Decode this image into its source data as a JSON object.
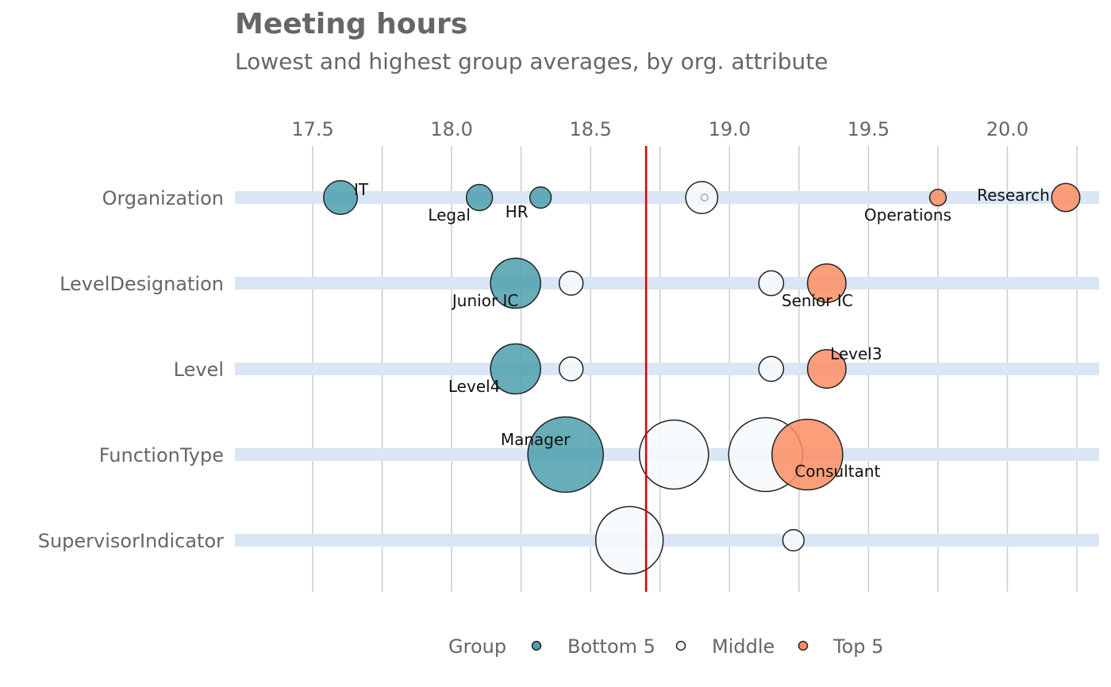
{
  "chart_data": {
    "type": "scatter",
    "title": "Meeting hours",
    "subtitle": "Lowest and highest group averages, by org. attribute",
    "xlim": [
      17.22,
      20.33
    ],
    "x_ticks": [
      "17.5",
      "18.0",
      "18.5",
      "19.0",
      "19.5",
      "20.0"
    ],
    "reference_line": 18.7,
    "reference_color": "#e00000",
    "categories": [
      "Organization",
      "LevelDesignation",
      "Level",
      "FunctionType",
      "SupervisorIndicator"
    ],
    "group_colors": {
      "Bottom 5": "#4e9fae",
      "Middle": "#f6f9fc",
      "Top 5": "#fc8d62"
    },
    "band_color": "#d9e6f5",
    "points": [
      {
        "category": "Organization",
        "x": 17.6,
        "size": 5,
        "group": "Bottom 5",
        "label": "IT"
      },
      {
        "category": "Organization",
        "x": 18.1,
        "size": 3,
        "group": "Bottom 5",
        "label": "Legal"
      },
      {
        "category": "Organization",
        "x": 18.32,
        "size": 2,
        "group": "Bottom 5",
        "label": "HR"
      },
      {
        "category": "Organization",
        "x": 18.9,
        "size": 4.5,
        "group": "Middle",
        "label": ""
      },
      {
        "category": "Organization",
        "x": 18.91,
        "size": 0.2,
        "group": "Middle",
        "label": ""
      },
      {
        "category": "Organization",
        "x": 19.75,
        "size": 1.2,
        "group": "Top 5",
        "label": "Operations"
      },
      {
        "category": "Organization",
        "x": 20.21,
        "size": 3.5,
        "group": "Top 5",
        "label": "Research"
      },
      {
        "category": "LevelDesignation",
        "x": 18.23,
        "size": 11,
        "group": "Bottom 5",
        "label": "Junior IC"
      },
      {
        "category": "LevelDesignation",
        "x": 18.43,
        "size": 2.5,
        "group": "Middle",
        "label": ""
      },
      {
        "category": "LevelDesignation",
        "x": 19.15,
        "size": 2.7,
        "group": "Middle",
        "label": ""
      },
      {
        "category": "LevelDesignation",
        "x": 19.35,
        "size": 6.5,
        "group": "Top 5",
        "label": "Senior IC"
      },
      {
        "category": "Level",
        "x": 18.23,
        "size": 11,
        "group": "Bottom 5",
        "label": "Level4"
      },
      {
        "category": "Level",
        "x": 18.43,
        "size": 2.5,
        "group": "Middle",
        "label": ""
      },
      {
        "category": "Level",
        "x": 19.15,
        "size": 2.7,
        "group": "Middle",
        "label": ""
      },
      {
        "category": "Level",
        "x": 19.35,
        "size": 6.5,
        "group": "Top 5",
        "label": "Level3"
      },
      {
        "category": "FunctionType",
        "x": 18.41,
        "size": 25,
        "group": "Bottom 5",
        "label": "Manager"
      },
      {
        "category": "FunctionType",
        "x": 18.8,
        "size": 21,
        "group": "Middle",
        "label": ""
      },
      {
        "category": "FunctionType",
        "x": 19.13,
        "size": 24,
        "group": "Middle",
        "label": ""
      },
      {
        "category": "FunctionType",
        "x": 19.28,
        "size": 22,
        "group": "Top 5",
        "label": "Consultant"
      },
      {
        "category": "SupervisorIndicator",
        "x": 18.64,
        "size": 20,
        "group": "Middle",
        "label": ""
      },
      {
        "category": "SupervisorIndicator",
        "x": 19.23,
        "size": 2,
        "group": "Middle",
        "label": ""
      }
    ],
    "legend": {
      "title": "Group",
      "items": [
        "Bottom 5",
        "Middle",
        "Top 5"
      ],
      "position": "bottom"
    }
  }
}
